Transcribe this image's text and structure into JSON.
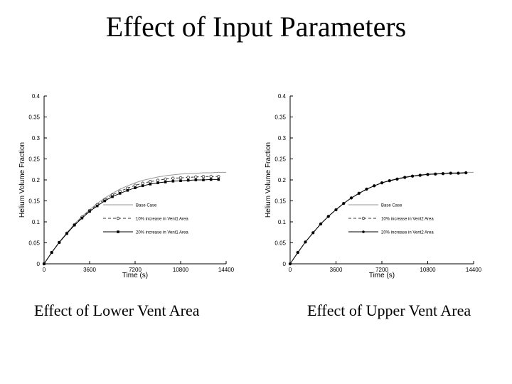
{
  "slide": {
    "title": "Effect of Input Parameters"
  },
  "captions": {
    "left": "Effect of Lower Vent Area",
    "right": "Effect of Upper Vent Area"
  },
  "chart_data": [
    {
      "type": "line",
      "title": "",
      "xlabel": "Time (s)",
      "ylabel": "Helium Volume Fraction",
      "xlim": [
        0,
        14400
      ],
      "ylim": [
        0,
        0.4
      ],
      "x_ticks": [
        0,
        3600,
        7200,
        10800,
        14400
      ],
      "y_ticks": [
        0,
        0.05,
        0.1,
        0.15,
        0.2,
        0.25,
        0.3,
        0.35,
        0.4
      ],
      "y_tick_labels": [
        "0",
        "0.05",
        "0.1",
        "0.15",
        "0.2",
        "0.25",
        "0.3",
        "0.35",
        "0.4"
      ],
      "grid": false,
      "legend_position": "lower-right",
      "series": [
        {
          "name": "Base Case",
          "marker": "none",
          "x": [
            0,
            600,
            1200,
            1800,
            2400,
            3000,
            3600,
            4200,
            4800,
            5400,
            6000,
            6600,
            7200,
            7800,
            8400,
            9000,
            9600,
            10200,
            10800,
            11400,
            12000,
            12600,
            13200,
            13800,
            14400
          ],
          "y": [
            0,
            0.027,
            0.052,
            0.074,
            0.095,
            0.113,
            0.129,
            0.144,
            0.157,
            0.168,
            0.178,
            0.186,
            0.193,
            0.199,
            0.203,
            0.207,
            0.21,
            0.212,
            0.214,
            0.215,
            0.216,
            0.217,
            0.217,
            0.218,
            0.218
          ]
        },
        {
          "name": "10% increase in Vent1 Area",
          "marker": "open-circle",
          "x": [
            0,
            600,
            1200,
            1800,
            2400,
            3000,
            3600,
            4200,
            4800,
            5400,
            6000,
            6600,
            7200,
            7800,
            8400,
            9000,
            9600,
            10200,
            10800,
            11400,
            12000,
            12600,
            13200,
            13800
          ],
          "y": [
            0,
            0.027,
            0.051,
            0.073,
            0.093,
            0.111,
            0.127,
            0.141,
            0.153,
            0.164,
            0.173,
            0.18,
            0.187,
            0.192,
            0.196,
            0.199,
            0.202,
            0.204,
            0.205,
            0.206,
            0.207,
            0.208,
            0.208,
            0.208
          ]
        },
        {
          "name": "20% increase in Vent1 Area",
          "marker": "filled-square",
          "x": [
            0,
            600,
            1200,
            1800,
            2400,
            3000,
            3600,
            4200,
            4800,
            5400,
            6000,
            6600,
            7200,
            7800,
            8400,
            9000,
            9600,
            10200,
            10800,
            11400,
            12000,
            12600,
            13200,
            13800
          ],
          "y": [
            0,
            0.027,
            0.051,
            0.072,
            0.092,
            0.109,
            0.125,
            0.138,
            0.15,
            0.16,
            0.168,
            0.175,
            0.181,
            0.186,
            0.19,
            0.193,
            0.195,
            0.197,
            0.198,
            0.199,
            0.2,
            0.2,
            0.201,
            0.201
          ]
        }
      ]
    },
    {
      "type": "line",
      "title": "",
      "xlabel": "Time (s)",
      "ylabel": "Helium Volume Fraction",
      "xlim": [
        0,
        14400
      ],
      "ylim": [
        0,
        0.4
      ],
      "x_ticks": [
        0,
        3600,
        7200,
        10800,
        14400
      ],
      "y_ticks": [
        0,
        0.05,
        0.1,
        0.15,
        0.2,
        0.25,
        0.3,
        0.35,
        0.4
      ],
      "y_tick_labels": [
        "0",
        "0.05",
        "0.1",
        "0.15",
        "0.2",
        "0.25",
        "0.3",
        "0.35",
        "0.4"
      ],
      "grid": false,
      "legend_position": "lower-right",
      "series": [
        {
          "name": "Base Case",
          "marker": "none",
          "x": [
            0,
            600,
            1200,
            1800,
            2400,
            3000,
            3600,
            4200,
            4800,
            5400,
            6000,
            6600,
            7200,
            7800,
            8400,
            9000,
            9600,
            10200,
            10800,
            11400,
            12000,
            12600,
            13200,
            13800,
            14400
          ],
          "y": [
            0,
            0.027,
            0.052,
            0.074,
            0.095,
            0.113,
            0.129,
            0.144,
            0.157,
            0.168,
            0.178,
            0.186,
            0.193,
            0.199,
            0.203,
            0.207,
            0.21,
            0.212,
            0.214,
            0.215,
            0.216,
            0.217,
            0.217,
            0.218,
            0.218
          ]
        },
        {
          "name": "10% increase in Vent2 Area",
          "marker": "open-circle",
          "x": [
            0,
            600,
            1200,
            1800,
            2400,
            3000,
            3600,
            4200,
            4800,
            5400,
            6000,
            6600,
            7200,
            7800,
            8400,
            9000,
            9600,
            10200,
            10800,
            11400,
            12000,
            12600,
            13200,
            13800
          ],
          "y": [
            0,
            0.027,
            0.052,
            0.074,
            0.095,
            0.113,
            0.129,
            0.144,
            0.157,
            0.168,
            0.178,
            0.186,
            0.193,
            0.198,
            0.202,
            0.206,
            0.209,
            0.211,
            0.213,
            0.214,
            0.215,
            0.216,
            0.216,
            0.217
          ]
        },
        {
          "name": "20% increase in Vent2 Area",
          "marker": "filled-circle",
          "x": [
            0,
            600,
            1200,
            1800,
            2400,
            3000,
            3600,
            4200,
            4800,
            5400,
            6000,
            6600,
            7200,
            7800,
            8400,
            9000,
            9600,
            10200,
            10800,
            11400,
            12000,
            12600,
            13200,
            13800
          ],
          "y": [
            0,
            0.027,
            0.052,
            0.074,
            0.095,
            0.113,
            0.129,
            0.144,
            0.157,
            0.168,
            0.178,
            0.186,
            0.193,
            0.198,
            0.202,
            0.206,
            0.209,
            0.211,
            0.213,
            0.214,
            0.215,
            0.216,
            0.216,
            0.217
          ]
        }
      ]
    }
  ]
}
